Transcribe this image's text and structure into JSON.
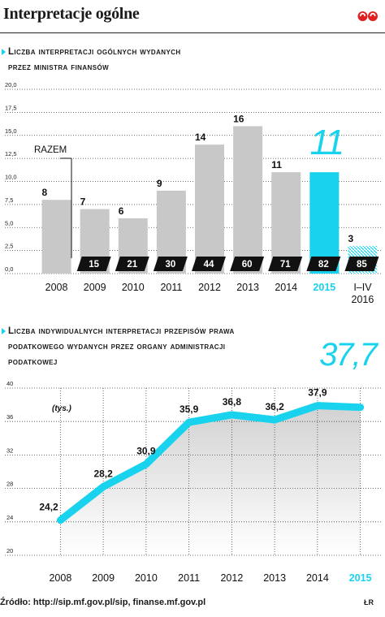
{
  "title": "Interpretacje ogólne",
  "chart_data": [
    {
      "type": "bar",
      "title_lines": [
        "Liczba interpretacji ogólnych wydanych",
        "przez ministra finansów"
      ],
      "categories": [
        "2008",
        "2009",
        "2010",
        "2011",
        "2012",
        "2013",
        "2014",
        "2015",
        "I–IV 2016"
      ],
      "values": [
        8,
        7,
        6,
        9,
        14,
        16,
        11,
        11,
        3
      ],
      "value_labels": [
        "8",
        "7",
        "6",
        "9",
        "14",
        "16",
        "11",
        "11",
        "3"
      ],
      "cumulative_label": "RAZEM",
      "cumulative": [
        null,
        15,
        21,
        30,
        44,
        60,
        71,
        82,
        85
      ],
      "cumulative_labels": [
        "",
        "15",
        "21",
        "30",
        "44",
        "60",
        "71",
        "82",
        "85"
      ],
      "ylim": [
        0,
        20
      ],
      "yticks": [
        "0,0",
        "2,5",
        "5,0",
        "7,5",
        "10,0",
        "12,5",
        "15,0",
        "17,5",
        "20,0"
      ],
      "highlight_category": "2015",
      "partial_category": "I–IV 2016",
      "colors": {
        "bar": "#c8c8c8",
        "highlight": "#19d3ee",
        "cumulative_box": "#111111",
        "partial_hatch": "#19d3ee"
      }
    },
    {
      "type": "area",
      "title_lines": [
        "Liczba indywidualnych interpretacji przepisów prawa",
        "podatkowego wydanych przez organy administracji",
        "podatkowej"
      ],
      "x": [
        "2008",
        "2009",
        "2010",
        "2011",
        "2012",
        "2013",
        "2014",
        "2015"
      ],
      "values": [
        24.2,
        28.2,
        30.9,
        35.9,
        36.8,
        36.2,
        37.9,
        37.7
      ],
      "value_labels": [
        "24,2",
        "28,2",
        "30,9",
        "35,9",
        "36,8",
        "36,2",
        "37,9",
        "37,7"
      ],
      "unit_label": "(tys.)",
      "ylim": [
        20,
        40
      ],
      "yticks": [
        "20",
        "24",
        "28",
        "32",
        "36",
        "40"
      ],
      "highlight_category": "2015",
      "colors": {
        "line": "#19d3ee",
        "area_top": "#d2d2d2",
        "area_bottom": "#ffffff"
      }
    }
  ],
  "footer": {
    "source": "Źródło: http://sip.mf.gov.pl/sip, finanse.mf.gov.pl",
    "author": "ŁR"
  }
}
